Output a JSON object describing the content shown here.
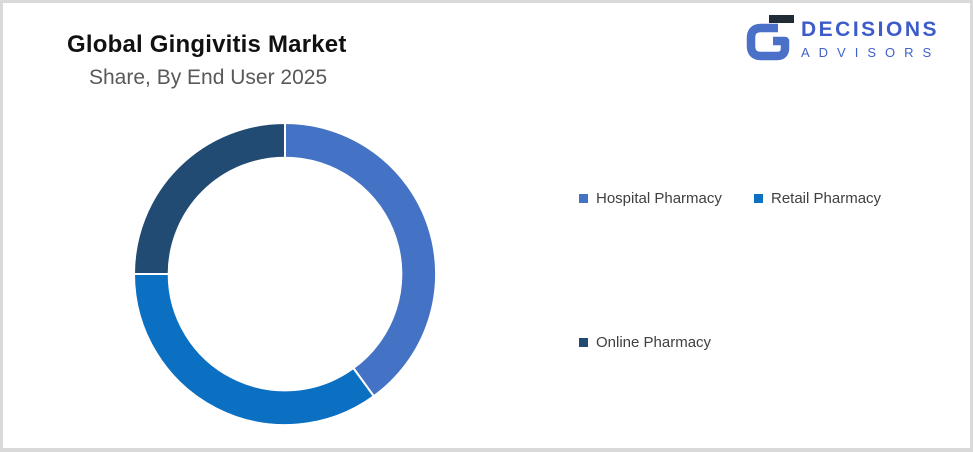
{
  "page": {
    "background": "#ffffff",
    "border_color": "#d9d9d9"
  },
  "header": {
    "title": "Global Gingivitis Market",
    "subtitle": "Share, By End User 2025",
    "title_color": "#111111",
    "subtitle_color": "#595959"
  },
  "logo": {
    "brand": "DECISIONS",
    "sub_brand": "ADVISORS",
    "text_color": "#3d5cc9",
    "icon": "decisions-g-logo",
    "icon_color": "#4a70c8",
    "icon_bar_color": "#212b36"
  },
  "chart_data": {
    "type": "pie",
    "subtype": "donut",
    "title": "Global Gingivitis Market",
    "subtitle": "Share, By End User 2025",
    "categories": [
      "Hospital Pharmacy",
      "Retail Pharmacy",
      "Online Pharmacy"
    ],
    "values": [
      40,
      35,
      25
    ],
    "colors": [
      "#4472C4",
      "#0B70C2",
      "#224B74"
    ],
    "start_angle_deg": 0,
    "direction": "clockwise",
    "hole_ratio": 0.77,
    "slice_border_color": "#ffffff",
    "legend_position": "right",
    "data_labels": false
  }
}
